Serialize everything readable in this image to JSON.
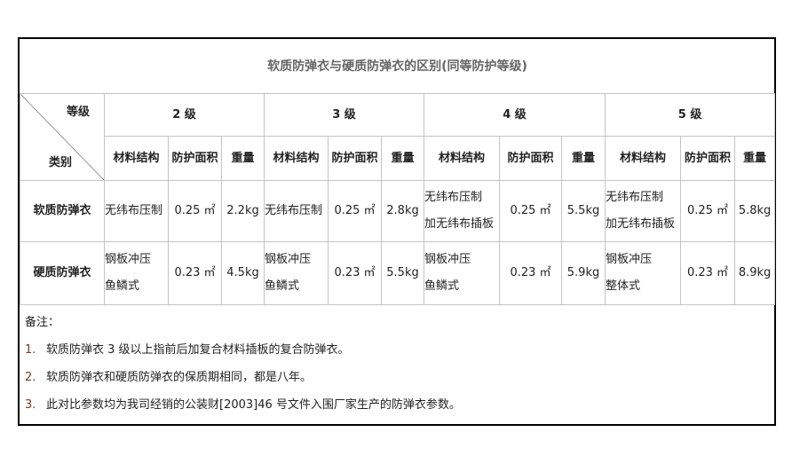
{
  "title": "软质防弹衣与硬质防弹衣的区别(同等防护等级)",
  "corner": {
    "top": "等级",
    "bottom": "类别"
  },
  "levels": [
    "2 级",
    "3 级",
    "4 级",
    "5 级"
  ],
  "subheaders": [
    "材料结构",
    "防护面积",
    "重量"
  ],
  "rows": [
    {
      "name": "软质防弹衣",
      "cells": [
        [
          "无纬布压制",
          "0.25 ㎡",
          "2.2kg"
        ],
        [
          "无纬布压制",
          "0.25 ㎡",
          "2.8kg"
        ],
        [
          "无纬布压制\n加无纬布插板",
          "0.25 ㎡",
          "5.5kg"
        ],
        [
          "无纬布压制\n加无纬布插板",
          "0.25 ㎡",
          "5.8kg"
        ]
      ]
    },
    {
      "name": "硬质防弹衣",
      "cells": [
        [
          "钢板冲压\n鱼鳞式",
          "0.23 ㎡",
          "4.5kg"
        ],
        [
          "钢板冲压\n鱼鳞式",
          "0.23 ㎡",
          "5.5kg"
        ],
        [
          "钢板冲压\n鱼鳞式",
          "0.23 ㎡",
          "5.9kg"
        ],
        [
          "钢板冲压\n整体式",
          "0.23 ㎡",
          "8.9kg"
        ]
      ]
    }
  ],
  "notes": {
    "heading": "备注：",
    "items": [
      {
        "num": "1.",
        "text": "软质防弹衣 3 级以上指前后加复合材料插板的复合防弹衣。"
      },
      {
        "num": "2.",
        "text": "软质防弹衣和硬质防弹衣的保质期相同，都是八年。"
      },
      {
        "num": "3.",
        "text": "此对比参数均为我司经销的公装财[2003]46 号文件入围厂家生产的防弹衣参数。"
      }
    ]
  }
}
